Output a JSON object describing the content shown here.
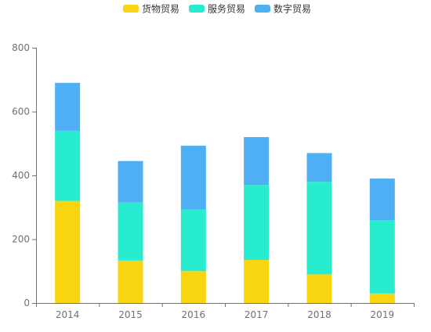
{
  "chart_data": {
    "type": "bar",
    "stacked": true,
    "categories": [
      "2014",
      "2015",
      "2016",
      "2017",
      "2018",
      "2019"
    ],
    "series": [
      {
        "name": "货物贸易",
        "color": "#f8d510",
        "values": [
          320,
          133,
          100,
          135,
          90,
          30
        ]
      },
      {
        "name": "服务贸易",
        "color": "#27ecd0",
        "values": [
          220,
          182,
          193,
          235,
          290,
          230
        ]
      },
      {
        "name": "数字贸易",
        "color": "#4eaff4",
        "values": [
          150,
          130,
          200,
          150,
          90,
          130
        ]
      }
    ],
    "yticks": [
      "0",
      "200",
      "400",
      "600",
      "800"
    ],
    "ylim": [
      0,
      800
    ],
    "legend_position": "top-center",
    "grid": false,
    "axis_color": "#6e7079",
    "label_color": "#6e7079"
  }
}
